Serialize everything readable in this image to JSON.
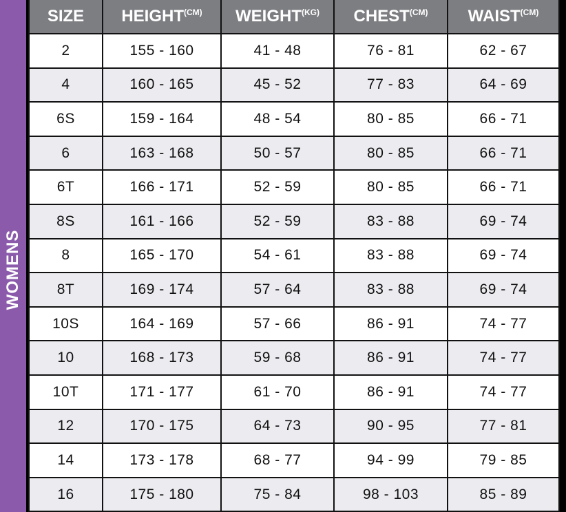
{
  "side_label": "WOMENS",
  "headers": [
    {
      "label": "SIZE",
      "unit": ""
    },
    {
      "label": "HEIGHT",
      "unit": "(CM)"
    },
    {
      "label": "WEIGHT",
      "unit": "(KG)"
    },
    {
      "label": "CHEST",
      "unit": "(CM)"
    },
    {
      "label": "WAIST",
      "unit": "(CM)"
    }
  ],
  "rows": [
    [
      "2",
      "155 - 160",
      "41 - 48",
      "76 - 81",
      "62 - 67"
    ],
    [
      "4",
      "160 - 165",
      "45 - 52",
      "77 - 83",
      "64 - 69"
    ],
    [
      "6S",
      "159 - 164",
      "48 - 54",
      "80 - 85",
      "66 - 71"
    ],
    [
      "6",
      "163 - 168",
      "50 - 57",
      "80 - 85",
      "66 - 71"
    ],
    [
      "6T",
      "166 - 171",
      "52 - 59",
      "80 - 85",
      "66 - 71"
    ],
    [
      "8S",
      "161 - 166",
      "52 - 59",
      "83 - 88",
      "69 - 74"
    ],
    [
      "8",
      "165 - 170",
      "54 - 61",
      "83 - 88",
      "69 - 74"
    ],
    [
      "8T",
      "169 - 174",
      "57 - 64",
      "83 - 88",
      "69 - 74"
    ],
    [
      "10S",
      "164 - 169",
      "57 - 66",
      "86 - 91",
      "74 - 77"
    ],
    [
      "10",
      "168 - 173",
      "59 - 68",
      "86 - 91",
      "74 - 77"
    ],
    [
      "10T",
      "171 - 177",
      "61 - 70",
      "86 - 91",
      "74 - 77"
    ],
    [
      "12",
      "170 - 175",
      "64 - 73",
      "90 - 95",
      "77 - 81"
    ],
    [
      "14",
      "173 - 178",
      "68 - 77",
      "94 - 99",
      "79 - 85"
    ],
    [
      "16",
      "175 - 180",
      "75 - 84",
      "98 - 103",
      "85 - 89"
    ]
  ],
  "colors": {
    "side": "#8b5aab",
    "header": "#7d7e82",
    "row_alt": "#ebebf0"
  }
}
